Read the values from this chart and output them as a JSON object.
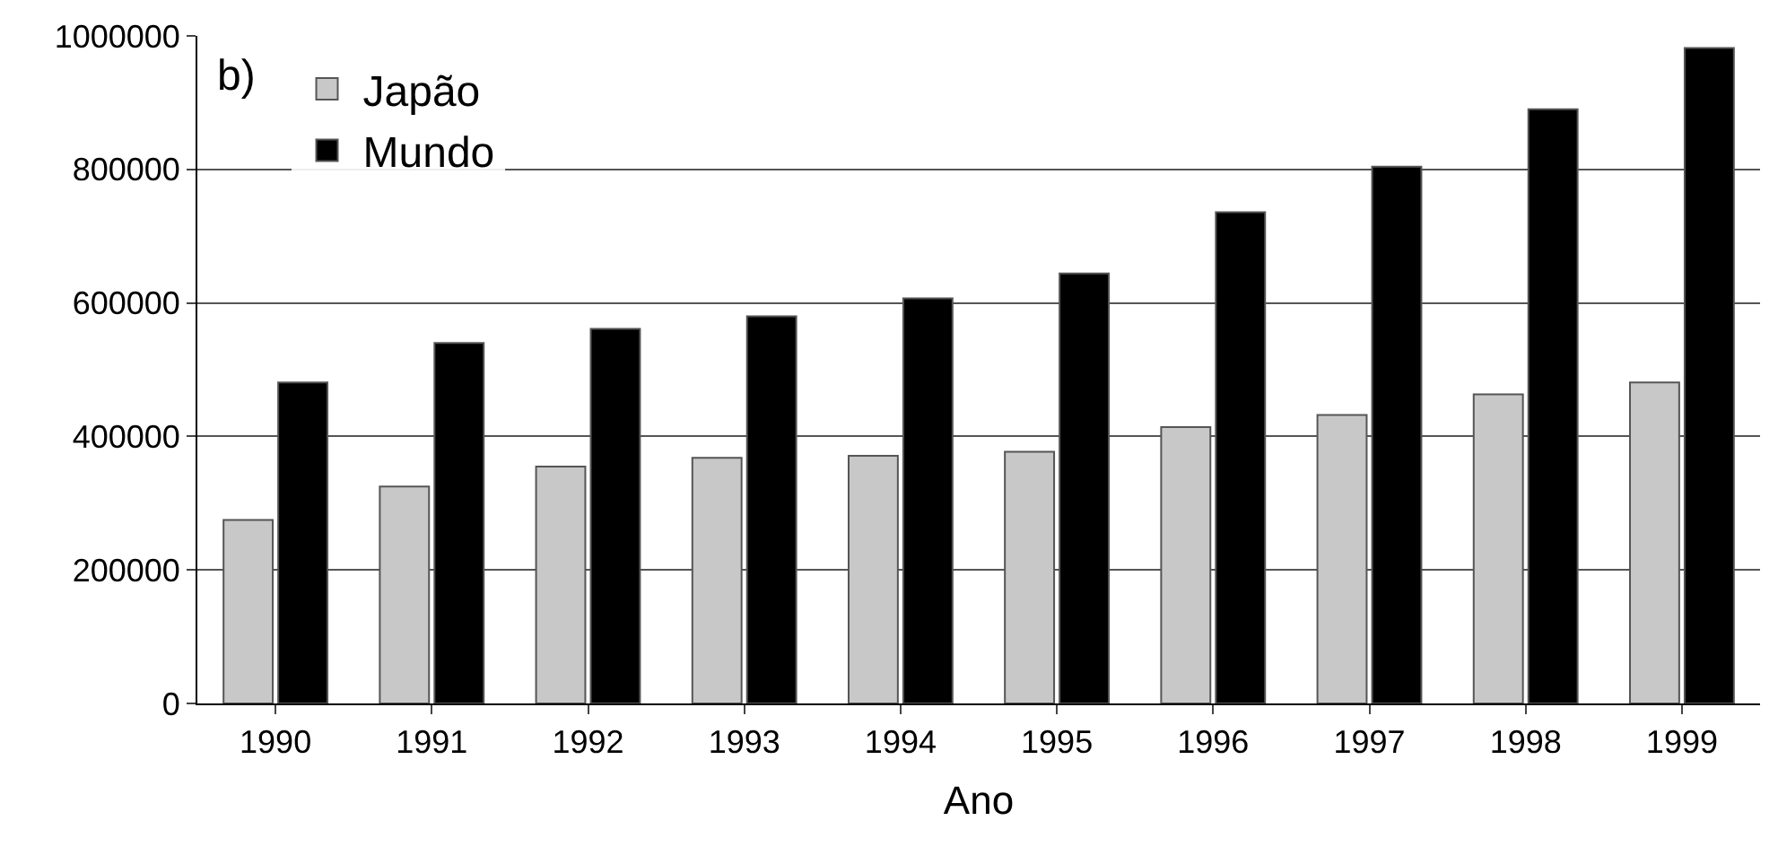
{
  "chart_data": {
    "type": "bar",
    "xlabel": "Ano",
    "categories": [
      "1990",
      "1991",
      "1992",
      "1993",
      "1994",
      "1995",
      "1996",
      "1997",
      "1998",
      "1999"
    ],
    "series": [
      {
        "name": "Japão",
        "color": "#c8c8c8",
        "values": [
          275000,
          325000,
          355000,
          368000,
          371000,
          377000,
          414000,
          432000,
          463000,
          481000
        ]
      },
      {
        "name": "Mundo",
        "color": "#000000",
        "values": [
          481000,
          540000,
          561000,
          580000,
          607000,
          644000,
          736000,
          804000,
          890000,
          982000
        ]
      }
    ],
    "ylim": [
      0,
      1000000
    ],
    "yticks": [
      0,
      200000,
      400000,
      600000,
      800000,
      1000000
    ],
    "grid": "y",
    "legend": "top left",
    "annotations": [
      "b)"
    ]
  }
}
